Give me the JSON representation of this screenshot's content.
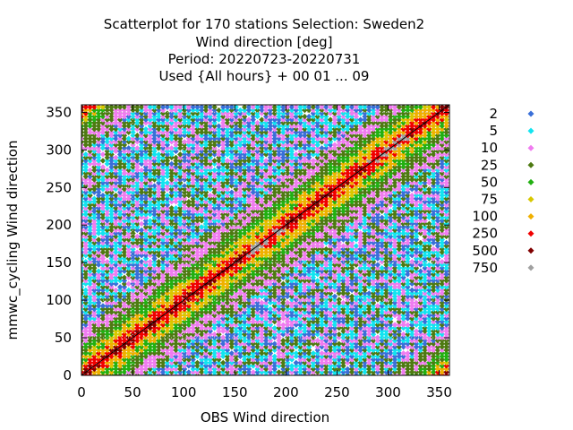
{
  "chart_data": {
    "type": "scatter",
    "title_lines": [
      "Scatterplot for  170 stations Selection: Sweden2",
      "Wind direction [deg]",
      "Period: 20220723-20220731",
      "Used {All hours} + 00 01 ... 09"
    ],
    "xlabel": "OBS Wind direction",
    "ylabel": "mmwc_cycling Wind direction",
    "xlim": [
      0,
      360
    ],
    "ylim": [
      0,
      360
    ],
    "x_ticks": [
      "0",
      "50",
      "100",
      "150",
      "200",
      "250",
      "300",
      "350"
    ],
    "y_ticks": [
      "0",
      "50",
      "100",
      "150",
      "200",
      "250",
      "300",
      "350"
    ],
    "grid": true,
    "diagonal_line": true,
    "legend_position": "right",
    "legend": [
      {
        "label": "2",
        "color": "#3a6fd8"
      },
      {
        "label": "5",
        "color": "#12e4f0"
      },
      {
        "label": "10",
        "color": "#f07cf0"
      },
      {
        "label": "25",
        "color": "#4e7a12"
      },
      {
        "label": "50",
        "color": "#22b012"
      },
      {
        "label": "75",
        "color": "#d8c800"
      },
      {
        "label": "100",
        "color": "#f0b000"
      },
      {
        "label": "250",
        "color": "#f00000"
      },
      {
        "label": "500",
        "color": "#800000"
      },
      {
        "label": "750",
        "color": "#a0a0a0"
      }
    ],
    "density_description": "point density concentrated along the diagonal y = x; highest counts (500-750) near 160-200 and 280-320 deg on the diagonal"
  }
}
